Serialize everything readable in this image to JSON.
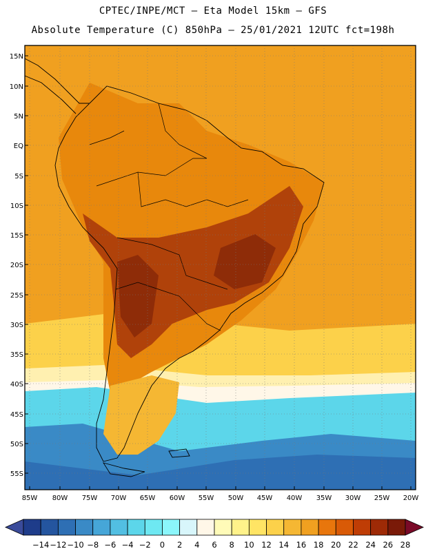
{
  "header": {
    "line1": "CPTEC/INPE/MCT —  Eta Model 15km — GFS",
    "line2": "Absolute Temperature (C) 850hPa — 25/01/2021 12UTC fct=198h"
  },
  "axes": {
    "lat_labels": [
      "15N",
      "10N",
      "5N",
      "EQ",
      "5S",
      "10S",
      "15S",
      "20S",
      "25S",
      "30S",
      "35S",
      "40S",
      "45S",
      "50S",
      "55S"
    ],
    "lon_labels": [
      "85W",
      "80W",
      "75W",
      "70W",
      "65W",
      "60W",
      "55W",
      "50W",
      "45W",
      "40W",
      "35W",
      "30W",
      "25W",
      "20W"
    ]
  },
  "colorbar": {
    "labels": [
      "-14",
      "-12",
      "-10",
      "-8",
      "-6",
      "-4",
      "-2",
      "0",
      "2",
      "4",
      "6",
      "8",
      "10",
      "12",
      "14",
      "16",
      "18",
      "20",
      "22",
      "24",
      "26",
      "28"
    ],
    "colors": [
      "#1e3c8a",
      "#24559f",
      "#2e6fb4",
      "#3a8ac6",
      "#46a6d8",
      "#52bfe2",
      "#5cd6ea",
      "#6ee8f2",
      "#8bf6fb",
      "#d8f6fb",
      "#fff7e8",
      "#fffbb8",
      "#fff28a",
      "#ffe464",
      "#fcd14a",
      "#f5b733",
      "#f0a020",
      "#e8760c",
      "#d95a06",
      "#bf3d05",
      "#9e2a06",
      "#7a1a08"
    ],
    "under_color": "#3a4b9a",
    "over_color": "#7a0a28"
  },
  "map_colors": {
    "hot_interior": "#b0420a",
    "warm": "#e8880c",
    "orange": "#f0a020",
    "light_orange": "#f5b733",
    "yellow": "#fcd14a",
    "pale": "#fff0b0",
    "cream": "#fff7e8",
    "cyan": "#5cd6ea",
    "blue": "#3a8ac6",
    "deep_blue": "#2e6fb4"
  }
}
